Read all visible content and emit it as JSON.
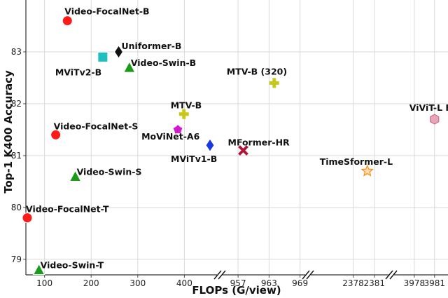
{
  "chart_data": {
    "type": "scatter",
    "title": "",
    "xlabel": "FLOPs (G/view)",
    "ylabel": "Top-1 K400 Accuracy",
    "ylim": [
      78.7,
      84.0
    ],
    "grid": true,
    "legend": "none",
    "broken_x_axis": true,
    "x_segments": [
      {
        "range": [
          60,
          470
        ],
        "ticks": [
          100,
          200,
          300,
          400
        ]
      },
      {
        "range": [
          954,
          970
        ],
        "ticks": [
          957,
          963,
          969
        ]
      },
      {
        "range": [
          2372,
          2383
        ],
        "ticks": [
          2378,
          2381
        ]
      },
      {
        "range": [
          3975,
          3983
        ],
        "ticks": [
          3978,
          3981
        ]
      }
    ],
    "y_ticks": [
      79,
      80,
      81,
      82,
      83
    ],
    "points": [
      {
        "label": "Video-FocalNet-B",
        "x": 149,
        "y": 83.6,
        "marker": "circle",
        "color": "#ff1a1a"
      },
      {
        "label": "Uniformer-B",
        "x": 259,
        "y": 83.0,
        "marker": "diamond",
        "color": "#111111"
      },
      {
        "label": "MViTv2-B",
        "x": 225,
        "y": 82.9,
        "marker": "square",
        "color": "#1fbfbf"
      },
      {
        "label": "Video-Swin-B",
        "x": 282,
        "y": 82.7,
        "marker": "triangle",
        "color": "#1a9b1a"
      },
      {
        "label": "MTV-B (320)",
        "x": 964,
        "y": 82.4,
        "marker": "plus",
        "color": "#c8c81a"
      },
      {
        "label": "MTV-B",
        "x": 399,
        "y": 81.8,
        "marker": "plus",
        "color": "#c8c81a"
      },
      {
        "label": "ViViT-L FE",
        "x": 3981,
        "y": 81.7,
        "marker": "hexagon",
        "color": "#e8a5b8"
      },
      {
        "label": "Video-FocalNet-S",
        "x": 124,
        "y": 81.4,
        "marker": "circle",
        "color": "#ff1a1a"
      },
      {
        "label": "MoViNet-A6",
        "x": 386,
        "y": 81.5,
        "marker": "pentagon",
        "color": "#d01ad0"
      },
      {
        "label": "MViTv1-B",
        "x": 455,
        "y": 81.2,
        "marker": "thin-diamond",
        "color": "#1a3ae0"
      },
      {
        "label": "MFormer-HR",
        "x": 958,
        "y": 81.1,
        "marker": "x",
        "color": "#b0163c"
      },
      {
        "label": "TimeSformer-L",
        "x": 2380,
        "y": 80.7,
        "marker": "star",
        "color": "#ff8c1a"
      },
      {
        "label": "Video-Swin-S",
        "x": 166,
        "y": 80.6,
        "marker": "triangle",
        "color": "#1a9b1a"
      },
      {
        "label": "Video-FocalNet-T",
        "x": 63,
        "y": 79.8,
        "marker": "circle",
        "color": "#ff1a1a"
      },
      {
        "label": "Video-Swin-T",
        "x": 88,
        "y": 78.8,
        "marker": "triangle",
        "color": "#1a9b1a"
      }
    ]
  }
}
